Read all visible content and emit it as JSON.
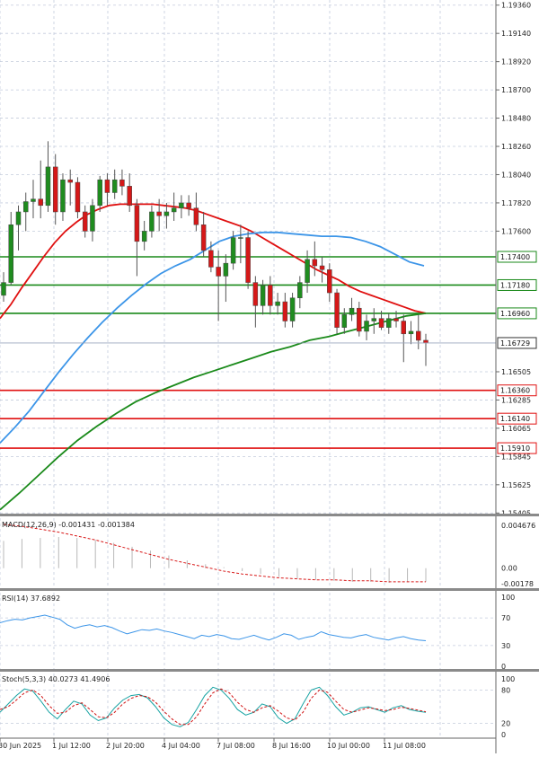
{
  "chart_data": [
    {
      "type": "candlestick",
      "panel": "price",
      "x_tick_labels": [
        "30 Jun 2025",
        "1 Jul 12:00",
        "2 Jul 20:00",
        "4 Jul 04:00",
        "7 Jul 08:00",
        "8 Jul 16:00",
        "10 Jul 00:00",
        "11 Jul 08:00"
      ],
      "y_tick_labels": [
        "1.19360",
        "1.19140",
        "1.18920",
        "1.18700",
        "1.18480",
        "1.18260",
        "1.18040",
        "1.17820",
        "1.17600",
        "1.16505",
        "1.16285",
        "1.16065",
        "1.15845",
        "1.15625",
        "1.15405"
      ],
      "ylim": [
        1.154,
        1.194
      ],
      "current_price": "1.16729",
      "current_price_value": 1.16729,
      "horizontal_levels": [
        {
          "label": "1.17400",
          "value": 1.174,
          "color": "#1a8a1a"
        },
        {
          "label": "1.17180",
          "value": 1.1718,
          "color": "#1a8a1a"
        },
        {
          "label": "1.16960",
          "value": 1.1696,
          "color": "#1a8a1a"
        },
        {
          "label": "1.16360",
          "value": 1.1636,
          "color": "#e01010"
        },
        {
          "label": "1.16140",
          "value": 1.1614,
          "color": "#e01010"
        },
        {
          "label": "1.15910",
          "value": 1.1591,
          "color": "#e01010"
        }
      ],
      "candles": [
        {
          "o": 1.171,
          "h": 1.1728,
          "l": 1.1705,
          "c": 1.172
        },
        {
          "o": 1.172,
          "h": 1.1775,
          "l": 1.1718,
          "c": 1.1765
        },
        {
          "o": 1.1765,
          "h": 1.178,
          "l": 1.1745,
          "c": 1.1775
        },
        {
          "o": 1.1775,
          "h": 1.179,
          "l": 1.176,
          "c": 1.1783
        },
        {
          "o": 1.1783,
          "h": 1.18,
          "l": 1.177,
          "c": 1.1785
        },
        {
          "o": 1.1785,
          "h": 1.1815,
          "l": 1.177,
          "c": 1.178
        },
        {
          "o": 1.178,
          "h": 1.183,
          "l": 1.1775,
          "c": 1.181
        },
        {
          "o": 1.181,
          "h": 1.182,
          "l": 1.1765,
          "c": 1.1775
        },
        {
          "o": 1.1775,
          "h": 1.1805,
          "l": 1.1768,
          "c": 1.18
        },
        {
          "o": 1.18,
          "h": 1.1808,
          "l": 1.178,
          "c": 1.1798
        },
        {
          "o": 1.1798,
          "h": 1.1802,
          "l": 1.177,
          "c": 1.1775
        },
        {
          "o": 1.1775,
          "h": 1.178,
          "l": 1.1755,
          "c": 1.176
        },
        {
          "o": 1.176,
          "h": 1.1785,
          "l": 1.1752,
          "c": 1.178
        },
        {
          "o": 1.178,
          "h": 1.1803,
          "l": 1.1775,
          "c": 1.18
        },
        {
          "o": 1.18,
          "h": 1.1805,
          "l": 1.178,
          "c": 1.179
        },
        {
          "o": 1.179,
          "h": 1.1808,
          "l": 1.1785,
          "c": 1.18
        },
        {
          "o": 1.18,
          "h": 1.1808,
          "l": 1.1788,
          "c": 1.1795
        },
        {
          "o": 1.1795,
          "h": 1.1805,
          "l": 1.1775,
          "c": 1.178
        },
        {
          "o": 1.178,
          "h": 1.1785,
          "l": 1.1725,
          "c": 1.1752
        },
        {
          "o": 1.1752,
          "h": 1.1768,
          "l": 1.1745,
          "c": 1.176
        },
        {
          "o": 1.176,
          "h": 1.178,
          "l": 1.1755,
          "c": 1.1775
        },
        {
          "o": 1.1775,
          "h": 1.1785,
          "l": 1.176,
          "c": 1.1772
        },
        {
          "o": 1.1772,
          "h": 1.1782,
          "l": 1.1762,
          "c": 1.1775
        },
        {
          "o": 1.1775,
          "h": 1.179,
          "l": 1.1768,
          "c": 1.1778
        },
        {
          "o": 1.1778,
          "h": 1.1788,
          "l": 1.177,
          "c": 1.1782
        },
        {
          "o": 1.1782,
          "h": 1.1788,
          "l": 1.1772,
          "c": 1.1778
        },
        {
          "o": 1.1778,
          "h": 1.179,
          "l": 1.176,
          "c": 1.1765
        },
        {
          "o": 1.1765,
          "h": 1.1775,
          "l": 1.174,
          "c": 1.1745
        },
        {
          "o": 1.1745,
          "h": 1.1752,
          "l": 1.1728,
          "c": 1.1732
        },
        {
          "o": 1.1732,
          "h": 1.1745,
          "l": 1.169,
          "c": 1.1725
        },
        {
          "o": 1.1725,
          "h": 1.1742,
          "l": 1.1705,
          "c": 1.1735
        },
        {
          "o": 1.1735,
          "h": 1.176,
          "l": 1.173,
          "c": 1.1755
        },
        {
          "o": 1.1755,
          "h": 1.1765,
          "l": 1.1735,
          "c": 1.1755
        },
        {
          "o": 1.1755,
          "h": 1.176,
          "l": 1.1715,
          "c": 1.172
        },
        {
          "o": 1.172,
          "h": 1.1725,
          "l": 1.1685,
          "c": 1.1702
        },
        {
          "o": 1.1702,
          "h": 1.1722,
          "l": 1.1695,
          "c": 1.1718
        },
        {
          "o": 1.1718,
          "h": 1.1725,
          "l": 1.1695,
          "c": 1.1702
        },
        {
          "o": 1.1702,
          "h": 1.1712,
          "l": 1.1695,
          "c": 1.1705
        },
        {
          "o": 1.1705,
          "h": 1.1712,
          "l": 1.1685,
          "c": 1.169
        },
        {
          "o": 1.169,
          "h": 1.1712,
          "l": 1.1685,
          "c": 1.1708
        },
        {
          "o": 1.1708,
          "h": 1.1725,
          "l": 1.17,
          "c": 1.172
        },
        {
          "o": 1.172,
          "h": 1.1745,
          "l": 1.1712,
          "c": 1.1738
        },
        {
          "o": 1.1738,
          "h": 1.1752,
          "l": 1.1725,
          "c": 1.1733
        },
        {
          "o": 1.1733,
          "h": 1.174,
          "l": 1.172,
          "c": 1.173
        },
        {
          "o": 1.173,
          "h": 1.1735,
          "l": 1.1705,
          "c": 1.1712
        },
        {
          "o": 1.1712,
          "h": 1.1715,
          "l": 1.168,
          "c": 1.1685
        },
        {
          "o": 1.1685,
          "h": 1.17,
          "l": 1.168,
          "c": 1.1695
        },
        {
          "o": 1.1695,
          "h": 1.1708,
          "l": 1.169,
          "c": 1.17
        },
        {
          "o": 1.17,
          "h": 1.1705,
          "l": 1.1678,
          "c": 1.1682
        },
        {
          "o": 1.1682,
          "h": 1.1695,
          "l": 1.1675,
          "c": 1.169
        },
        {
          "o": 1.169,
          "h": 1.17,
          "l": 1.168,
          "c": 1.1692
        },
        {
          "o": 1.1692,
          "h": 1.1698,
          "l": 1.1683,
          "c": 1.1685
        },
        {
          "o": 1.1685,
          "h": 1.1696,
          "l": 1.168,
          "c": 1.1692
        },
        {
          "o": 1.1692,
          "h": 1.1698,
          "l": 1.1685,
          "c": 1.169
        },
        {
          "o": 1.169,
          "h": 1.1695,
          "l": 1.1658,
          "c": 1.168
        },
        {
          "o": 1.168,
          "h": 1.169,
          "l": 1.1672,
          "c": 1.1682
        },
        {
          "o": 1.1682,
          "h": 1.1695,
          "l": 1.1668,
          "c": 1.1675
        },
        {
          "o": 1.1675,
          "h": 1.168,
          "l": 1.1655,
          "c": 1.1673
        }
      ],
      "series": [
        {
          "name": "",
          "color": "#e01010",
          "values": [
            1.1692,
            1.1703,
            1.1716,
            1.1728,
            1.174,
            1.1751,
            1.176,
            1.1767,
            1.1773,
            1.1777,
            1.178,
            1.1781,
            1.1781,
            1.1781,
            1.1781,
            1.178,
            1.1779,
            1.1778,
            1.1776,
            1.1773,
            1.177,
            1.1767,
            1.1764,
            1.176,
            1.1755,
            1.175,
            1.1745,
            1.174,
            1.1735,
            1.173,
            1.1726,
            1.1722,
            1.1717,
            1.1713,
            1.171,
            1.1707,
            1.1704,
            1.1701,
            1.1698,
            1.1696
          ]
        },
        {
          "name": "",
          "color": "#3c95e8",
          "values": [
            1.1595,
            1.1607,
            1.162,
            1.1635,
            1.165,
            1.1664,
            1.1677,
            1.1689,
            1.17,
            1.171,
            1.1719,
            1.1727,
            1.1733,
            1.1738,
            1.1745,
            1.1752,
            1.1756,
            1.1758,
            1.1759,
            1.1759,
            1.1758,
            1.1757,
            1.1756,
            1.1756,
            1.1755,
            1.1752,
            1.1748,
            1.1742,
            1.1736,
            1.1733
          ]
        },
        {
          "name": "",
          "color": "#1a8a1a",
          "values": [
            1.1543,
            1.1556,
            1.157,
            1.1584,
            1.1597,
            1.1608,
            1.1618,
            1.1627,
            1.1634,
            1.164,
            1.1646,
            1.1651,
            1.1656,
            1.1661,
            1.1666,
            1.167,
            1.1675,
            1.1678,
            1.1682,
            1.1686,
            1.169,
            1.1694,
            1.1696
          ]
        }
      ]
    },
    {
      "type": "bar",
      "panel": "macd",
      "title": "MACD(12,26,9) -0.001431 -0.001384",
      "y_tick_labels": [
        "0.004676",
        "0.00",
        "-0.00178"
      ],
      "values": [
        0.0028,
        0.003,
        0.0031,
        0.0032,
        0.0031,
        0.0029,
        0.0026,
        0.0022,
        0.0018,
        0.0013,
        0.0008,
        0.0004,
        0.0001,
        -0.0003,
        -0.0006,
        -0.0009,
        -0.0011,
        -0.0012,
        -0.0013,
        -0.0014,
        -0.0014,
        -0.0015,
        -0.0014,
        -0.0014
      ],
      "signal": [
        0.0045,
        0.0043,
        0.004,
        0.0037,
        0.0033,
        0.0029,
        0.0024,
        0.0019,
        0.0014,
        0.0009,
        0.0005,
        0.0001,
        -0.0003,
        -0.0006,
        -0.0008,
        -0.001,
        -0.0011,
        -0.0012,
        -0.0012,
        -0.0013,
        -0.0013,
        -0.0014,
        -0.0014,
        -0.0014
      ]
    },
    {
      "type": "line",
      "panel": "rsi",
      "title": "RSI(14) 37.6892",
      "y_tick_labels": [
        "100",
        "70",
        "30",
        "0"
      ],
      "ylim": [
        0,
        100
      ],
      "series": [
        {
          "name": "",
          "color": "#3c95e8",
          "values": [
            63,
            66,
            68,
            67,
            70,
            72,
            74,
            71,
            68,
            60,
            55,
            58,
            60,
            57,
            59,
            56,
            51,
            47,
            50,
            53,
            52,
            54,
            51,
            49,
            46,
            43,
            40,
            45,
            43,
            46,
            44,
            40,
            39,
            42,
            45,
            41,
            38,
            42,
            47,
            45,
            39,
            42,
            44,
            50,
            46,
            44,
            42,
            41,
            44,
            46,
            42,
            40,
            38,
            41,
            43,
            40,
            38,
            37
          ]
        }
      ]
    },
    {
      "type": "line",
      "panel": "stochastic",
      "title": "Stoch(5,3,3) 40.0273 41.4906",
      "y_tick_labels": [
        "100",
        "80",
        "20",
        "0"
      ],
      "ylim": [
        0,
        100
      ],
      "series": [
        {
          "name": "",
          "color": "#17a3a3",
          "values": [
            40,
            55,
            70,
            82,
            78,
            60,
            40,
            28,
            45,
            60,
            55,
            35,
            25,
            30,
            48,
            62,
            70,
            72,
            66,
            50,
            30,
            18,
            14,
            22,
            45,
            70,
            85,
            80,
            65,
            45,
            35,
            40,
            55,
            50,
            30,
            20,
            28,
            55,
            80,
            85,
            70,
            50,
            35,
            40,
            48,
            50,
            45,
            40,
            48,
            52,
            45,
            42,
            40
          ]
        },
        {
          "name": "",
          "color": "#d01010",
          "values": [
            45,
            50,
            62,
            75,
            80,
            70,
            52,
            38,
            40,
            52,
            57,
            45,
            32,
            30,
            40,
            55,
            65,
            70,
            68,
            58,
            42,
            28,
            18,
            18,
            32,
            55,
            75,
            82,
            75,
            58,
            45,
            40,
            48,
            52,
            42,
            30,
            26,
            40,
            65,
            80,
            76,
            60,
            45,
            40,
            44,
            48,
            46,
            43,
            45,
            49,
            47,
            44,
            41
          ]
        }
      ]
    }
  ]
}
